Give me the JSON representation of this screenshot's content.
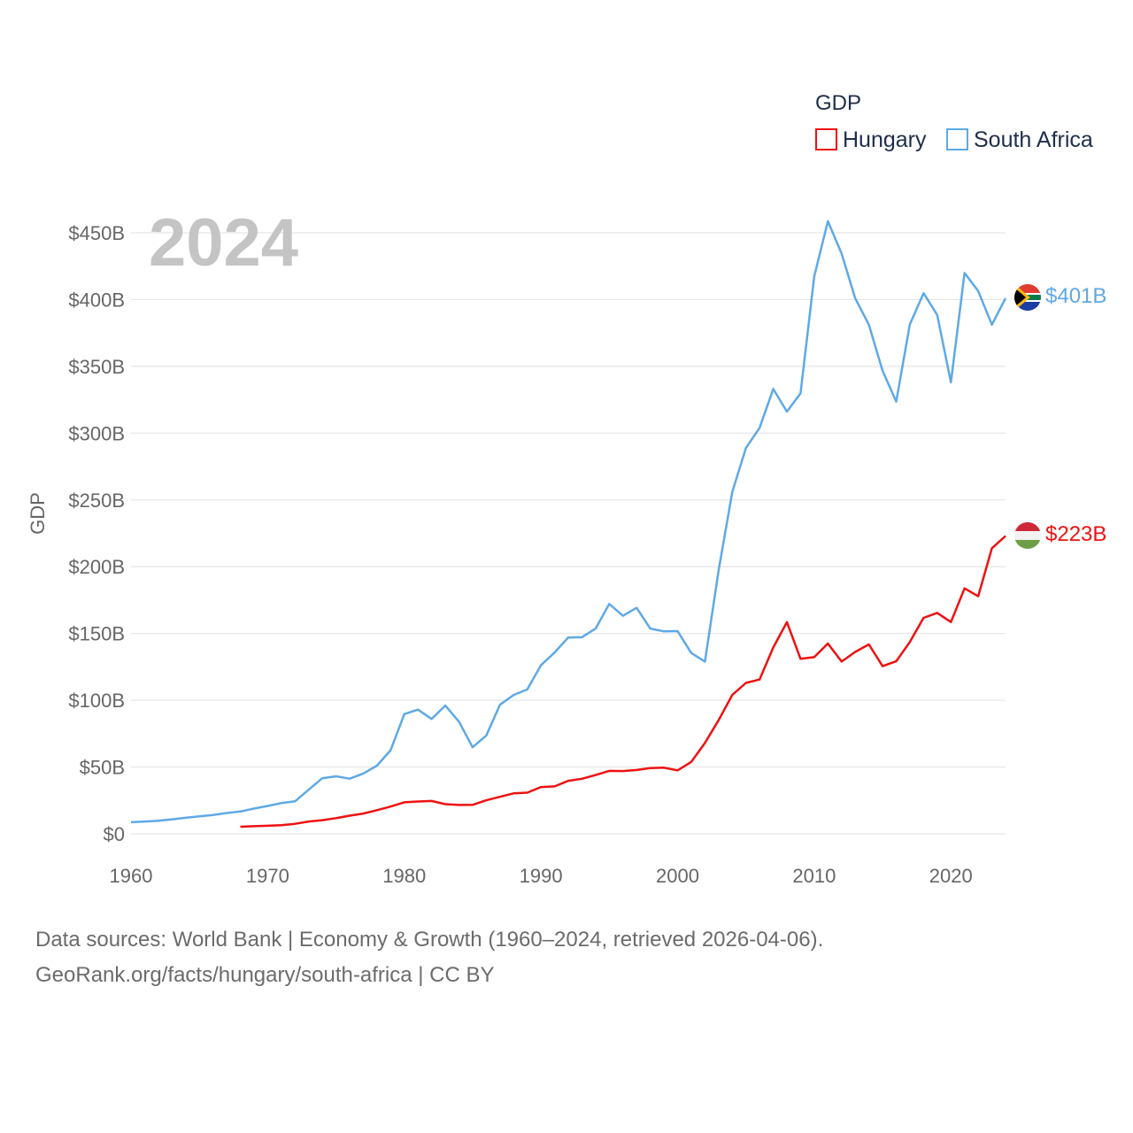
{
  "chart_data": {
    "type": "line",
    "title": "GDP",
    "ylabel": "GDP",
    "xlabel": "",
    "year_label": "2024",
    "xlim": [
      1960,
      2024
    ],
    "ylim": [
      0,
      450
    ],
    "x_ticks": [
      1960,
      1970,
      1980,
      1990,
      2000,
      2010,
      2020
    ],
    "y_ticks": [
      0,
      50,
      100,
      150,
      200,
      250,
      300,
      350,
      400,
      450
    ],
    "y_tick_labels": [
      "$0",
      "$50B",
      "$100B",
      "$150B",
      "$200B",
      "$250B",
      "$300B",
      "$350B",
      "$400B",
      "$450B"
    ],
    "series": [
      {
        "name": "Hungary",
        "color": "#ee1111",
        "end_label": "$223B",
        "x": [
          1968,
          1969,
          1970,
          1971,
          1972,
          1973,
          1974,
          1975,
          1976,
          1977,
          1978,
          1979,
          1980,
          1981,
          1982,
          1983,
          1984,
          1985,
          1986,
          1987,
          1988,
          1989,
          1990,
          1991,
          1992,
          1993,
          1994,
          1995,
          1996,
          1997,
          1998,
          1999,
          2000,
          2001,
          2002,
          2003,
          2004,
          2005,
          2006,
          2007,
          2008,
          2009,
          2010,
          2011,
          2012,
          2013,
          2014,
          2015,
          2016,
          2017,
          2018,
          2019,
          2020,
          2021,
          2022,
          2023,
          2024
        ],
        "values": [
          5.3,
          5.7,
          6.0,
          6.5,
          7.5,
          9.2,
          10.2,
          11.7,
          13.6,
          15.2,
          17.7,
          20.4,
          23.6,
          24.2,
          24.6,
          22.2,
          21.6,
          21.7,
          25.1,
          27.7,
          30.3,
          30.8,
          35.0,
          35.5,
          39.7,
          41.2,
          44.0,
          47.1,
          47.0,
          47.8,
          49.2,
          49.5,
          47.5,
          53.8,
          68.0,
          85.0,
          104.0,
          113.0,
          115.5,
          139.5,
          158.5,
          131.0,
          132.3,
          142.5,
          129.0,
          136.2,
          141.8,
          125.5,
          129.2,
          143.6,
          161.7,
          165.4,
          158.5,
          183.8,
          177.9,
          213.8,
          223.0
        ]
      },
      {
        "name": "South Africa",
        "color": "#5ea9e6",
        "end_label": "$401B",
        "x": [
          1960,
          1961,
          1962,
          1963,
          1964,
          1965,
          1966,
          1967,
          1968,
          1969,
          1970,
          1971,
          1972,
          1973,
          1974,
          1975,
          1976,
          1977,
          1978,
          1979,
          1980,
          1981,
          1982,
          1983,
          1984,
          1985,
          1986,
          1987,
          1988,
          1989,
          1990,
          1991,
          1992,
          1993,
          1994,
          1995,
          1996,
          1997,
          1998,
          1999,
          2000,
          2001,
          2002,
          2003,
          2004,
          2005,
          2006,
          2007,
          2008,
          2009,
          2010,
          2011,
          2012,
          2013,
          2014,
          2015,
          2016,
          2017,
          2018,
          2019,
          2020,
          2021,
          2022,
          2023,
          2024
        ],
        "values": [
          8.7,
          9.2,
          9.8,
          10.9,
          12.0,
          13.1,
          14.1,
          15.6,
          16.7,
          18.9,
          20.9,
          23.0,
          24.3,
          33.0,
          41.6,
          43.1,
          41.3,
          45.1,
          51.0,
          62.6,
          89.7,
          93.0,
          86.0,
          96.0,
          84.0,
          64.8,
          73.6,
          96.6,
          104.0,
          108.1,
          126.2,
          135.8,
          147.0,
          147.2,
          153.7,
          172.1,
          163.2,
          169.2,
          153.7,
          151.6,
          151.8,
          135.4,
          129.0,
          197.0,
          256.0,
          288.9,
          303.9,
          333.1,
          316.1,
          329.8,
          417.4,
          458.7,
          434.4,
          400.9,
          381.2,
          346.7,
          323.6,
          381.4,
          404.8,
          388.5,
          338.0,
          419.9,
          406.4,
          381.2,
          401.0
        ]
      }
    ]
  },
  "legend": {
    "title": "GDP",
    "items": [
      "Hungary",
      "South Africa"
    ]
  },
  "source": {
    "line1": "Data sources: World Bank | Economy & Growth (1960–2024, retrieved 2026-04-06).",
    "line2": "GeoRank.org/facts/hungary/south-africa | CC BY"
  }
}
